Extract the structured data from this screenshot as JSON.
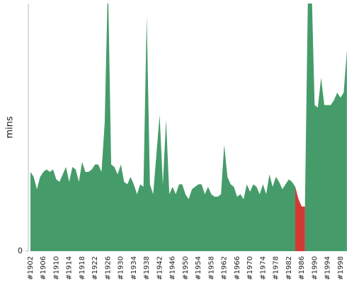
{
  "chart_data": {
    "type": "area",
    "y_label": "mins",
    "categories": [
      "#1902",
      null,
      null,
      null,
      "#1906",
      null,
      null,
      null,
      "#1910",
      null,
      null,
      null,
      "#1914",
      null,
      null,
      null,
      "#1918",
      null,
      null,
      null,
      "#1922",
      null,
      null,
      null,
      "#1926",
      null,
      null,
      null,
      "#1930",
      null,
      null,
      null,
      "#1934",
      null,
      null,
      null,
      "#1938",
      null,
      null,
      null,
      "#1942",
      null,
      null,
      null,
      "#1946",
      null,
      null,
      null,
      "#1950",
      null,
      null,
      null,
      "#1954",
      null,
      null,
      null,
      "#1958",
      null,
      null,
      null,
      "#1962",
      null,
      null,
      null,
      "#1966",
      null,
      null,
      null,
      "#1970",
      null,
      null,
      null,
      "#1974",
      null,
      null,
      null,
      "#1978",
      null,
      null,
      null,
      "#1982",
      null,
      null,
      null,
      "#1986",
      null,
      null,
      null,
      "#1990",
      null,
      null,
      null,
      "#1994",
      null,
      null,
      null,
      "#1998",
      null,
      null
    ],
    "series": [
      {
        "color": "#459c6a",
        "values": [
          32,
          30,
          25,
          30,
          32,
          33,
          32,
          33,
          29,
          28,
          31,
          34,
          28,
          34,
          33,
          28,
          36,
          32,
          32,
          33,
          35,
          35,
          32,
          52,
          110,
          35,
          34,
          31,
          35,
          28,
          27,
          30,
          27,
          23,
          27,
          26,
          95,
          27,
          23,
          39,
          55,
          27,
          53,
          23,
          26,
          23,
          27,
          27,
          23,
          21,
          25,
          26,
          27,
          27,
          23,
          26,
          23,
          22,
          22,
          23,
          43,
          30,
          27,
          26,
          22,
          23,
          21,
          27,
          24,
          27,
          26,
          23,
          27,
          23,
          31,
          26,
          30,
          28,
          25,
          27,
          29,
          28,
          26,
          null,
          null,
          18,
          110,
          110,
          59,
          58,
          70,
          59,
          59,
          59,
          61,
          64,
          62,
          64,
          81
        ]
      },
      {
        "color": "#d13a34",
        "values": [
          null,
          null,
          null,
          null,
          null,
          null,
          null,
          null,
          null,
          null,
          null,
          null,
          null,
          null,
          null,
          null,
          null,
          null,
          null,
          null,
          null,
          null,
          null,
          null,
          null,
          null,
          null,
          null,
          null,
          null,
          null,
          null,
          null,
          null,
          null,
          null,
          null,
          null,
          null,
          null,
          null,
          null,
          null,
          null,
          null,
          null,
          null,
          null,
          null,
          null,
          null,
          null,
          null,
          null,
          null,
          null,
          null,
          null,
          null,
          null,
          null,
          null,
          null,
          null,
          null,
          null,
          null,
          null,
          null,
          null,
          null,
          null,
          null,
          null,
          null,
          null,
          null,
          null,
          null,
          null,
          null,
          null,
          26,
          21,
          18,
          18,
          null,
          null,
          null,
          null,
          null,
          null,
          null,
          null,
          null,
          null,
          null,
          null,
          null
        ]
      }
    ],
    "ylim": [
      0,
      100
    ],
    "yticks": [
      0
    ]
  }
}
